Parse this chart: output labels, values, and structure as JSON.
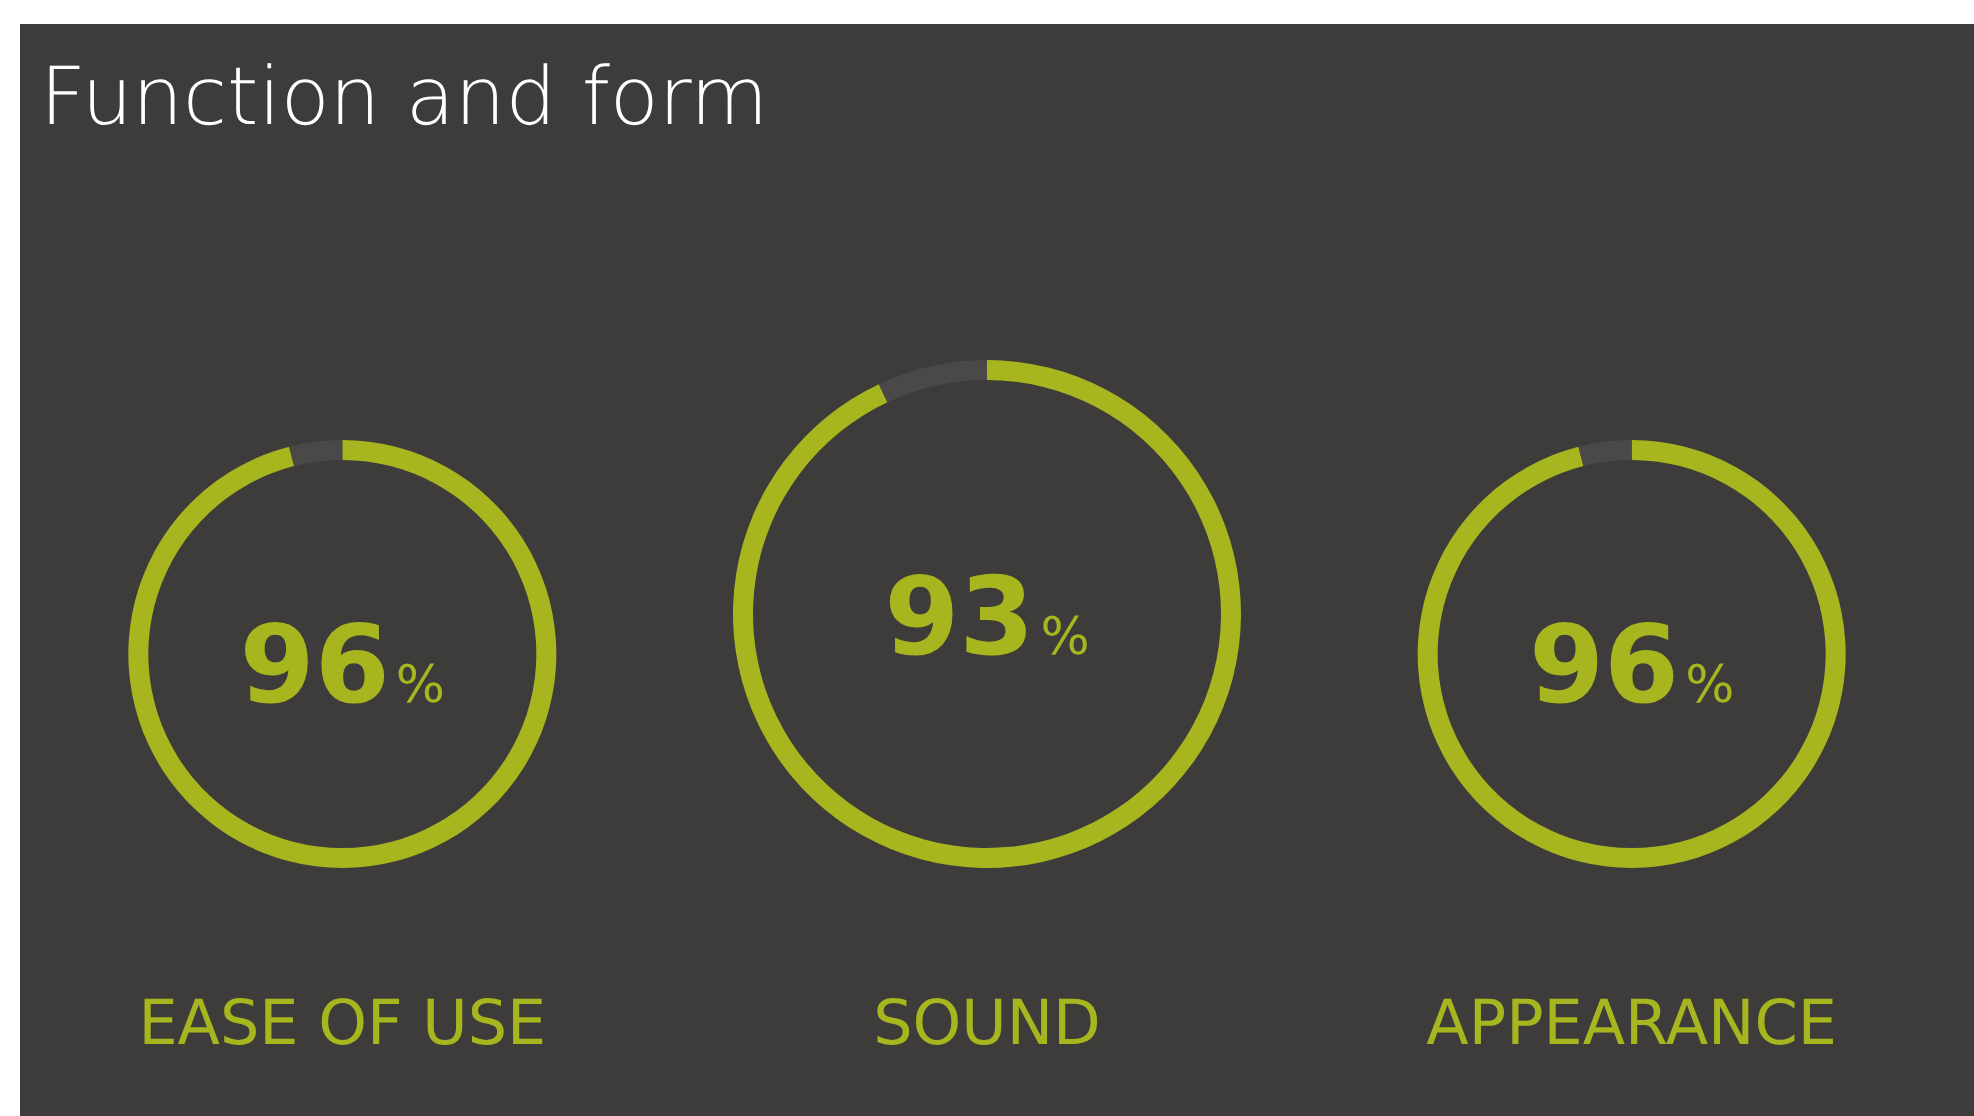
{
  "chart_data": [
    {
      "type": "donut",
      "title": "Function and form",
      "xlabel": "EASE OF USE",
      "categories": [
        null,
        null
      ],
      "values": [
        96,
        4
      ],
      "colors": [
        "#a7b61f",
        "#4b4947"
      ],
      "value_labels": [
        "96%",
        null
      ]
    },
    {
      "type": "donut",
      "xlabel": "SOUND",
      "categories": [
        null,
        null
      ],
      "values": [
        93,
        7
      ],
      "colors": [
        "#a7b61f",
        "#4b4947"
      ],
      "value_labels": [
        "93%",
        null
      ]
    },
    {
      "type": "donut",
      "xlabel": "APPEARANCE",
      "categories": [
        null,
        null
      ],
      "values": [
        96,
        4
      ],
      "colors": [
        "#a7b61f",
        "#4b4947"
      ],
      "value_labels": [
        "96%",
        null
      ]
    }
  ]
}
